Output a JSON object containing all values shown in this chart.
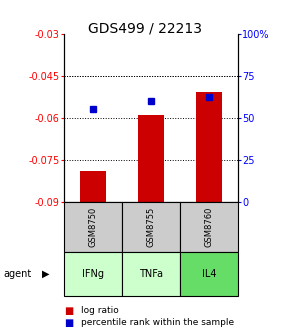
{
  "title": "GDS499 / 22213",
  "samples": [
    "GSM8750",
    "GSM8755",
    "GSM8760"
  ],
  "agents": [
    "IFNg",
    "TNFa",
    "IL4"
  ],
  "log_ratios": [
    -0.079,
    -0.059,
    -0.051
  ],
  "percentile_ranks": [
    55,
    60,
    62
  ],
  "ylim_left": [
    -0.09,
    -0.03
  ],
  "ylim_right": [
    0,
    100
  ],
  "yticks_left": [
    -0.09,
    -0.075,
    -0.06,
    -0.045,
    -0.03
  ],
  "yticks_right": [
    0,
    25,
    50,
    75,
    100
  ],
  "ytick_labels_right": [
    "0",
    "25",
    "50",
    "75",
    "100%"
  ],
  "bar_color": "#cc0000",
  "dot_color": "#0000cc",
  "agent_colors": [
    "#ccffcc",
    "#ccffcc",
    "#66dd66"
  ],
  "sample_box_color": "#cccccc",
  "title_fontsize": 10,
  "axis_fontsize": 7,
  "tick_label_fontsize": 7,
  "sample_fontsize": 6,
  "agent_fontsize": 7,
  "legend_fontsize": 6.5
}
